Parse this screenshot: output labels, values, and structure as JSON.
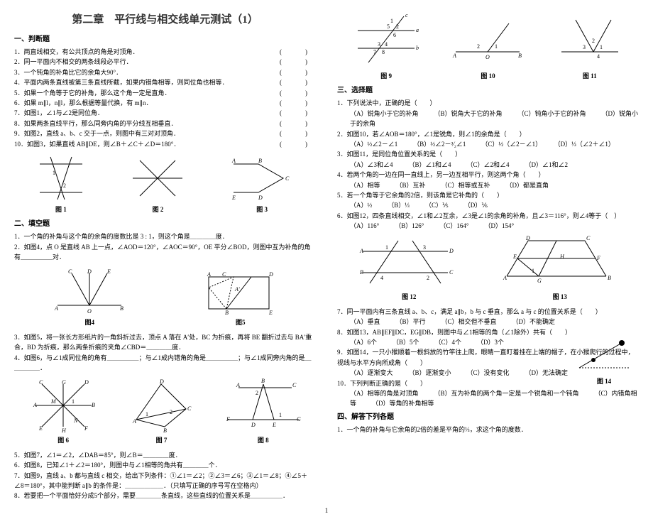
{
  "title": "第二章　平行线与相交线单元测试（1）",
  "sec1": "一、判断题",
  "j": [
    "1．两直线相交，有公共顶点的角是对顶角．",
    "2．同一平面内不相交的两条线段必平行．",
    "3．一个钝角的补角比它的余角大90°．",
    "4．平面内两条直线被第三条直线所截，如果内错角相等，则同位角也相等．",
    "5．如果一个角等于它的补角，那么这个角一定是直角．",
    "6．如果 m∥l，n∥l，那么根据等量代换，有 m∥n．",
    "7．如图1，∠1与∠2是同位角．",
    "8．如果两条直线平行，那么同旁内角的平分线互相垂直．",
    "9．如图2，直线 a、b、c 交于一点，则图中有三对对顶角．",
    "10．如图3，如果直线 AB∥DE，则∠B＋∠C＋∠D＝180°．"
  ],
  "figc": {
    "f1": "图 1",
    "f2": "图 2",
    "f3": "图 3",
    "f4": "图4",
    "f5": "图5",
    "f6": "图 6",
    "f7": "图 7",
    "f8": "图 8",
    "f9": "图 9",
    "f10": "图 10",
    "f11": "图 11",
    "f12": "图 12",
    "f13": "图 13",
    "f14": "图 14"
  },
  "sec2": "二、填空题",
  "fill": [
    "1．一个角的补角与这个角的余角的度数比是 3 : 1，则这个角是＿＿＿＿度．",
    "2．如图4，点 O 是直线 AB 上一点，∠AOD＝120°，∠AOC＝90°，OE 平分∠BOD，则图中互为补角的角有＿＿＿＿＿对．",
    "3．如图5，将一张长方形纸片的一角斜折过去，顶点 A 落在 A′处，BC 为折痕，再将 BE 翻折过去与 BA′重合，BD 为折痕，那么两条折痕的夹角∠CBD＝＿＿＿＿度．",
    "4．如图6，与∠1成同位角的角有＿＿＿＿＿；与∠1成内错角的角是＿＿＿＿＿；与∠1成同旁内角的是＿＿＿＿＿．",
    "5．如图7，∠1＝∠2，∠DAB＝85°，则∠B＝＿＿＿＿度．",
    "6．如图8，已知∠1＋∠2＝180°，则图中与∠1相等的角共有＿＿＿＿个．",
    "7．如图9，直线 a、b 都与直线 c 相交，给出下列条件：①∠1＝∠2；②∠3＝∠6；③∠1＝∠8；④∠5＋∠8＝180°，其中能判断 a∥b 的条件是：＿＿＿＿＿＿．（只填写正确的序号写在空格内）",
    "8．若要把一个平面恰好分成5个部分，需要＿＿＿＿条直线，这些直线的位置关系是＿＿＿＿＿．"
  ],
  "sec3": "三、选择题",
  "ch": [
    {
      "q": "1．下列说法中，正确的是（　　）",
      "o": [
        "（A）锐角小于它的补角",
        "（B）锐角大于它的补角",
        "（C）钝角小于它的补角",
        "（D）锐角小于的余角"
      ]
    },
    {
      "q": "2．如图10，若∠AOB＝180°，∠1是锐角，则∠1的余角是（　　）",
      "o": [
        "（A）½∠2－∠1",
        "（B）½∠2－³⁄₂∠1",
        "（C）½（∠2－∠1）",
        "（D）⅓（∠2＋∠1）"
      ]
    },
    {
      "q": "3．如图11，是同位角位置关系的是（　　）",
      "o": [
        "（A）∠3和∠4",
        "（B）∠1和∠4",
        "（C）∠2和∠4",
        "（D）∠1和∠2"
      ]
    },
    {
      "q": "4．若两个角的一边在同一直线上，另一边互相平行，则这两个角（　　）",
      "o": [
        "（A）相等",
        "（B）互补",
        "（C）相等或互补",
        "（D）都是直角"
      ]
    },
    {
      "q": "5．若一个角等于它余角的2倍，则该角是它补角的（　　）",
      "o": [
        "（A）½",
        "（B）⅓",
        "（C）⅕",
        "（D）⅙"
      ]
    },
    {
      "q": "6．如图12，四条直线相交，∠1和∠2互余，∠3是∠1的余角的补角，且∠3＝116°，则∠4等于（　）",
      "o": [
        "（A）116°",
        "（B）126°",
        "（C）164°",
        "（D）154°"
      ]
    },
    {
      "q": "7．同一平面内有三条直线 a、b、c，满足 a∥b，b 与 c 垂直，那么 a 与 c 的位置关系是（　　）",
      "o": [
        "（A）垂直",
        "（B）平行",
        "（C）相交但不垂直",
        "（D）不能确定"
      ]
    },
    {
      "q": "8．如图13，AB∥EF∥DC，EG∥DB，则图中与∠1相等的角（∠1除外）共有（　　）",
      "o": [
        "（A）6个",
        "（B）5个",
        "（C）4个",
        "（D）3个"
      ]
    },
    {
      "q": "9．如图14，一只小猴顺着一根斜放的竹竿往上爬，眼睛一直盯着挂在上端的帽子，在小猴爬行的过程中，视线与水平方向所成角（　　）",
      "o": [
        "（A）逐渐变大",
        "（B）逐渐变小",
        "（C）没有变化",
        "（D）无法确定"
      ]
    },
    {
      "q": "10．下列判断正确的是（　　）",
      "o": [
        "（A）相等的角是对顶角",
        "（B）互为补角的两个角一定是一个锐角和一个钝角",
        "（C）内错角相等",
        "（D）等角的补角相等"
      ]
    }
  ],
  "sec4": "四、解答下列各题",
  "ans": [
    "1．一个角的补角与它余角的2倍的差是平角的⅓，求这个角的度数．"
  ],
  "footer": "1"
}
